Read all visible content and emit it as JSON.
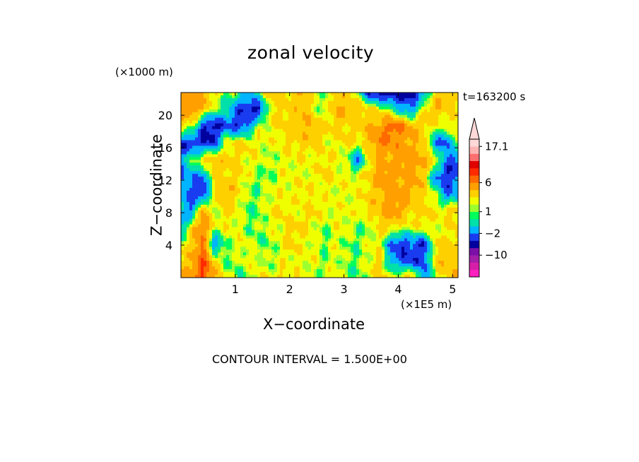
{
  "chart_data": {
    "type": "heatmap",
    "title": "zonal velocity",
    "xlabel": "X−coordinate",
    "ylabel": "Z−coordinate",
    "x_unit": "(×1E5 m)",
    "y_unit": "(×1000 m)",
    "time_label": "t=163200 s",
    "footer": "CONTOUR INTERVAL = 1.500E+00",
    "xlim": [
      0.0,
      5.1
    ],
    "ylim": [
      0.0,
      22.8
    ],
    "x_ticks": [
      1,
      2,
      3,
      4,
      5
    ],
    "x_tick_labels": [
      "1",
      "2",
      "3",
      "4",
      "5"
    ],
    "y_ticks": [
      4,
      8,
      12,
      16,
      20
    ],
    "y_tick_labels": [
      "4",
      "8",
      "12",
      "16",
      "20"
    ],
    "colorbar": {
      "labels": [
        {
          "value": 17.1,
          "text": "17.1"
        },
        {
          "value": 6,
          "text": "6"
        },
        {
          "value": 1,
          "text": "1"
        },
        {
          "value": -2,
          "text": "−2"
        },
        {
          "value": -10,
          "text": "−10"
        }
      ],
      "levels": [
        -19,
        -16,
        -13,
        -10,
        -7,
        -4,
        -2.5,
        -1,
        0.5,
        1,
        1.5,
        2.5,
        4,
        6,
        8,
        10.5,
        13,
        15,
        17.1
      ],
      "colors": [
        "#ff1fbf",
        "#d61fa8",
        "#a31fa8",
        "#7a10a8",
        "#00009e",
        "#1a3cf0",
        "#00b4ff",
        "#00e0a8",
        "#00ff5a",
        "#9cff30",
        "#f0ff00",
        "#ffd000",
        "#ffa000",
        "#ff6a00",
        "#ff2a00",
        "#e00000",
        "#ff6f6f",
        "#ffb4b4",
        "#ffd8d8"
      ]
    },
    "field_grid": {
      "nx": 26,
      "nz": 12,
      "x_range": [
        0.0,
        5.1
      ],
      "z_range": [
        0.0,
        22.8
      ],
      "values_bottom_to_top": [
        [
          4,
          5,
          9,
          4,
          2,
          1,
          1,
          2,
          2,
          3,
          2,
          2,
          1,
          2,
          2,
          1,
          1,
          2,
          3,
          2,
          3,
          3,
          -3,
          2,
          3,
          4
        ],
        [
          3,
          4,
          8,
          3,
          1,
          1,
          2,
          2,
          1,
          2,
          2,
          2,
          2,
          1,
          2,
          1,
          1,
          2,
          3,
          -2,
          -3,
          -4,
          -3,
          3,
          4,
          3
        ],
        [
          2,
          3,
          7,
          -3,
          1,
          2,
          2,
          1,
          1,
          2,
          3,
          2,
          2,
          1,
          2,
          1,
          1,
          2,
          2,
          -3,
          -4,
          -3,
          -4,
          3,
          3,
          3
        ],
        [
          -2,
          3,
          6,
          2,
          2,
          2,
          1,
          1,
          2,
          2,
          3,
          3,
          2,
          1,
          2,
          2,
          1,
          1,
          3,
          3,
          2,
          2,
          3,
          2,
          2,
          3
        ],
        [
          -1,
          -3,
          5,
          1,
          3,
          2,
          1,
          1,
          2,
          3,
          2,
          2,
          3,
          2,
          2,
          2,
          2,
          3,
          4,
          5,
          4,
          3,
          3,
          2,
          3,
          3
        ],
        [
          -2,
          -3,
          -4,
          2,
          4,
          3,
          1,
          1,
          2,
          2,
          2,
          3,
          2,
          2,
          2,
          2,
          2,
          3,
          4,
          5,
          5,
          4,
          3,
          1,
          -3,
          -2
        ],
        [
          -3,
          -2,
          -3,
          3,
          3,
          3,
          2,
          1,
          1,
          2,
          2,
          2,
          2,
          3,
          2,
          2,
          2,
          3,
          5,
          5,
          4,
          5,
          3,
          -3,
          -4,
          -3
        ],
        [
          -2,
          1,
          3,
          4,
          3,
          3,
          2,
          2,
          1,
          2,
          2,
          2,
          2,
          3,
          2,
          1,
          -3,
          3,
          4,
          4,
          5,
          5,
          4,
          3,
          -3,
          -3
        ],
        [
          -4,
          -4,
          -4,
          -4,
          2,
          3,
          3,
          2,
          2,
          2,
          3,
          3,
          3,
          2,
          2,
          3,
          2,
          4,
          6,
          6,
          5,
          4,
          3,
          -3,
          -3,
          2
        ],
        [
          3,
          2,
          -4,
          -5,
          -3,
          -4,
          -3,
          2,
          2,
          3,
          3,
          4,
          4,
          3,
          3,
          3,
          3,
          4,
          5,
          7,
          6,
          4,
          3,
          2,
          2,
          3
        ],
        [
          5,
          5,
          4,
          1,
          0,
          -3,
          -4,
          -5,
          2,
          3,
          3,
          4,
          2,
          1,
          4,
          4,
          3,
          3,
          2,
          1,
          -2,
          -2,
          3,
          4,
          3,
          2
        ],
        [
          4,
          5,
          4,
          3,
          1,
          1,
          -2,
          1,
          3,
          3,
          3,
          4,
          2,
          1,
          4,
          3,
          1,
          -4,
          -5,
          -6,
          -6,
          -4,
          -2,
          3,
          4,
          3
        ]
      ]
    }
  }
}
